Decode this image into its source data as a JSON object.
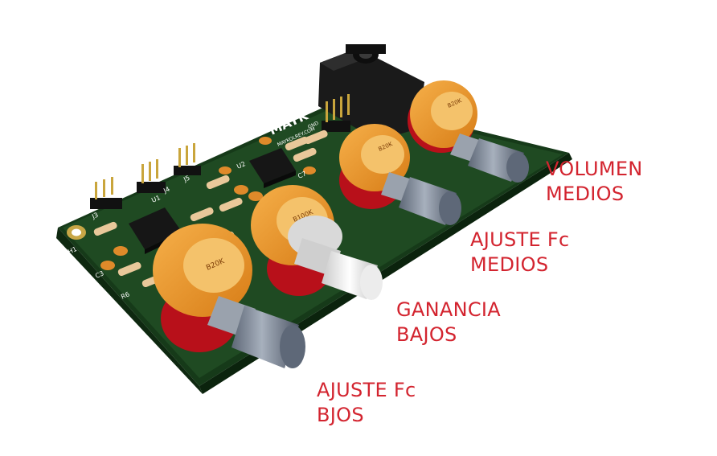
{
  "image": {
    "silkscreen": {
      "logo": "MAYK",
      "website": "MAYKOLREY.COM",
      "gnd": "GND",
      "pot_values": [
        "B20K",
        "B100K",
        "B20K",
        "B20K"
      ],
      "refs": [
        "H1",
        "J3",
        "U1",
        "J4",
        "J5",
        "U2",
        "C7",
        "R6",
        "C3"
      ]
    }
  },
  "labels": {
    "volumen_medios": {
      "line1": "VOLUMEN",
      "line2": "MEDIOS"
    },
    "ajuste_fc_medios": {
      "line1": "AJUSTE Fc",
      "line2": "MEDIOS"
    },
    "ganancia_bajos": {
      "line1": "GANANCIA",
      "line2": "BAJOS"
    },
    "ajuste_fc_bjos": {
      "line1": "AJUSTE Fc",
      "line2": "BJOS"
    }
  },
  "colors": {
    "label": "#d3242f",
    "pcb": "#1f4a22",
    "pot_body": "#e8952c",
    "knob": "#7d8796",
    "white_knob": "#f1f1f1"
  }
}
